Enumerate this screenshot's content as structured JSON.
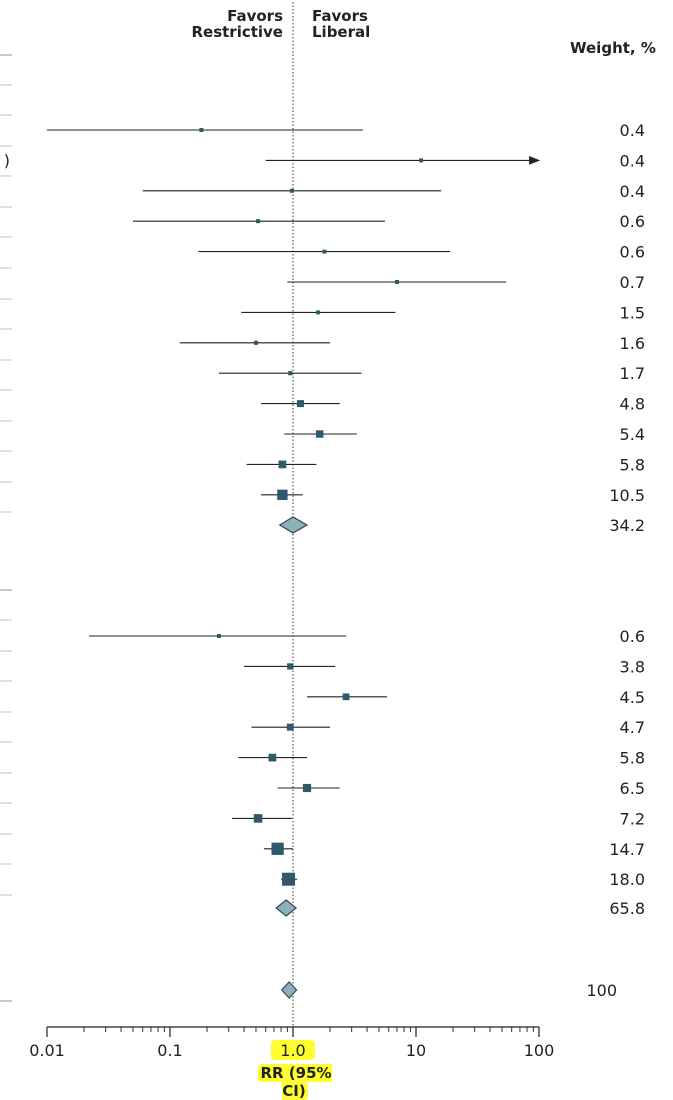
{
  "chart_data": {
    "type": "forest",
    "x_scale": "log",
    "xlim": [
      0.01,
      100
    ],
    "x_ticks": [
      "0.01",
      "0.1",
      "1.0",
      "10",
      "100"
    ],
    "xlabel": "RR (95% CI)",
    "reference_line": 1.0,
    "header_left": [
      "Favors",
      "Restrictive"
    ],
    "header_right": [
      "Favors",
      "Liberal"
    ],
    "weight_header": "Weight, %",
    "colors": {
      "marker": "#2e5a6b",
      "diamond_fill": "#8fb0b8",
      "line": "#222222",
      "highlight": "#ffff30"
    },
    "groups": [
      {
        "studies": [
          {
            "rr": 0.18,
            "lo": 0.01,
            "hi": 3.7,
            "weight": "0.4"
          },
          {
            "rr": 11.0,
            "lo": 0.6,
            "hi": 200,
            "weight": "0.4",
            "arrow_right": true
          },
          {
            "rr": 0.98,
            "lo": 0.06,
            "hi": 16,
            "weight": "0.4"
          },
          {
            "rr": 0.52,
            "lo": 0.05,
            "hi": 5.6,
            "weight": "0.6"
          },
          {
            "rr": 1.8,
            "lo": 0.17,
            "hi": 19,
            "weight": "0.6"
          },
          {
            "rr": 7.0,
            "lo": 0.9,
            "hi": 54,
            "weight": "0.7"
          },
          {
            "rr": 1.6,
            "lo": 0.38,
            "hi": 6.8,
            "weight": "1.5"
          },
          {
            "rr": 0.5,
            "lo": 0.12,
            "hi": 2.0,
            "weight": "1.6"
          },
          {
            "rr": 0.95,
            "lo": 0.25,
            "hi": 3.6,
            "weight": "1.7"
          },
          {
            "rr": 1.15,
            "lo": 0.55,
            "hi": 2.4,
            "weight": "4.8"
          },
          {
            "rr": 1.65,
            "lo": 0.85,
            "hi": 3.3,
            "weight": "5.4"
          },
          {
            "rr": 0.82,
            "lo": 0.42,
            "hi": 1.55,
            "weight": "5.8"
          },
          {
            "rr": 0.82,
            "lo": 0.55,
            "hi": 1.2,
            "weight": "10.5"
          }
        ],
        "pooled": {
          "rr": 1.0,
          "lo": 0.78,
          "hi": 1.3,
          "weight": "34.2"
        }
      },
      {
        "studies": [
          {
            "rr": 0.25,
            "lo": 0.022,
            "hi": 2.7,
            "weight": "0.6"
          },
          {
            "rr": 0.95,
            "lo": 0.4,
            "hi": 2.2,
            "weight": "3.8"
          },
          {
            "rr": 2.7,
            "lo": 1.3,
            "hi": 5.8,
            "weight": "4.5"
          },
          {
            "rr": 0.95,
            "lo": 0.46,
            "hi": 2.0,
            "weight": "4.7"
          },
          {
            "rr": 0.68,
            "lo": 0.36,
            "hi": 1.3,
            "weight": "5.8"
          },
          {
            "rr": 1.3,
            "lo": 0.75,
            "hi": 2.4,
            "weight": "6.5"
          },
          {
            "rr": 0.52,
            "lo": 0.32,
            "hi": 0.98,
            "weight": "7.2"
          },
          {
            "rr": 0.75,
            "lo": 0.58,
            "hi": 1.0,
            "weight": "14.7"
          },
          {
            "rr": 0.92,
            "lo": 0.8,
            "hi": 1.08,
            "weight": "18.0"
          }
        ],
        "pooled": {
          "rr": 0.88,
          "lo": 0.73,
          "hi": 1.06,
          "weight": "65.8"
        }
      }
    ],
    "overall": {
      "rr": 0.93,
      "lo": 0.81,
      "hi": 1.07,
      "weight": "100"
    }
  }
}
